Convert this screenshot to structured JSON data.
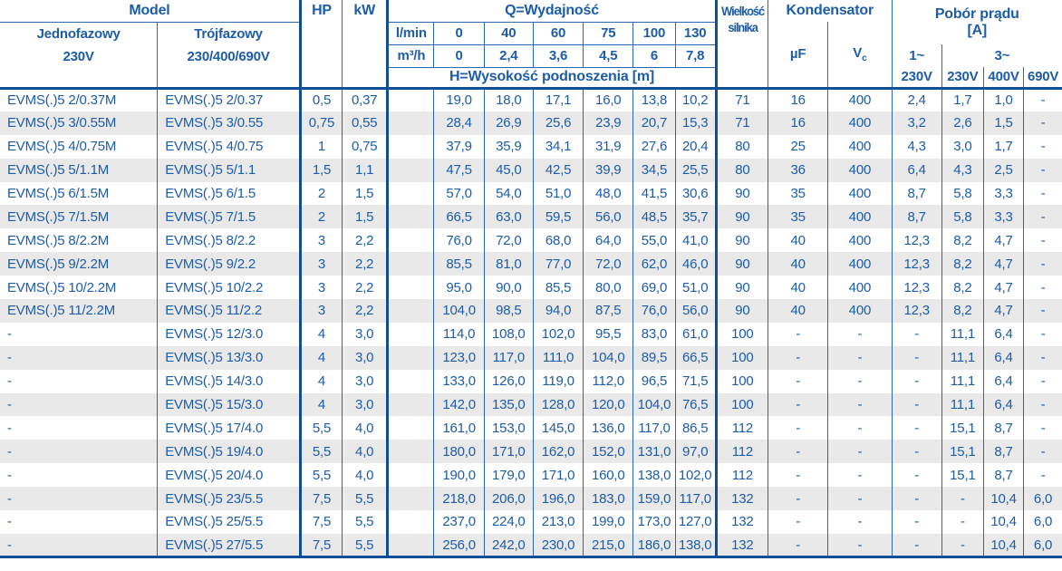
{
  "colors": {
    "text_blue": "#1d5ca8",
    "line_blue": "#2a67ae",
    "border_navy": "#0d4e95",
    "stripe_gray": "#e9e9ea"
  },
  "table": {
    "header": {
      "model_title": "Model",
      "single_phase_name": "Jednofazowy",
      "single_phase_voltage": "230V",
      "three_phase_name": "Trójfazowy",
      "three_phase_voltage": "230/400/690V",
      "hp_label": "HP",
      "kw_label": "kW",
      "flow_title": "Q=Wydajność",
      "flow_lmin_label": "l/min",
      "flow_lmin_values": [
        "0",
        "40",
        "60",
        "75",
        "100",
        "130"
      ],
      "flow_m3h_label": "m³/h",
      "flow_m3h_values": [
        "0",
        "2,4",
        "3,6",
        "4,5",
        "6",
        "7,8"
      ],
      "head_title": "H=Wysokość podnoszenia [m]",
      "motor_size_line1": "Wielkość",
      "motor_size_line2": "silnika",
      "capacitor_title": "Kondensator",
      "capacitor_uf_label": "µF",
      "capacitor_vc_label": "V",
      "capacitor_vc_sub": "c",
      "current_title_line1": "Pobór prądu",
      "current_title_line2": "[A]",
      "current_single_label": "1~",
      "current_three_label": "3~",
      "current_voltage_labels": [
        "230V",
        "230V",
        "400V",
        "690V"
      ]
    },
    "rows": [
      {
        "single": "EVMS(.)5 2/0.37M",
        "three": "EVMS(.)5 2/0.37",
        "hp": "0,5",
        "kw": "0,37",
        "heads": [
          "19,0",
          "18,0",
          "17,1",
          "16,0",
          "13,8",
          "10,2"
        ],
        "motor_size": "71",
        "uf": "16",
        "vc": "400",
        "currents": [
          "2,4",
          "1,7",
          "1,0",
          "-"
        ]
      },
      {
        "single": "EVMS(.)5 3/0.55M",
        "three": "EVMS(.)5 3/0.55",
        "hp": "0,75",
        "kw": "0,55",
        "heads": [
          "28,4",
          "26,9",
          "25,6",
          "23,9",
          "20,7",
          "15,3"
        ],
        "motor_size": "71",
        "uf": "16",
        "vc": "400",
        "currents": [
          "3,2",
          "2,6",
          "1,5",
          "-"
        ]
      },
      {
        "single": "EVMS(.)5 4/0.75M",
        "three": "EVMS(.)5 4/0.75",
        "hp": "1",
        "kw": "0,75",
        "heads": [
          "37,9",
          "35,9",
          "34,1",
          "31,9",
          "27,6",
          "20,4"
        ],
        "motor_size": "80",
        "uf": "25",
        "vc": "400",
        "currents": [
          "4,3",
          "3,0",
          "1,7",
          "-"
        ]
      },
      {
        "single": "EVMS(.)5 5/1.1M",
        "three": "EVMS(.)5 5/1.1",
        "hp": "1,5",
        "kw": "1,1",
        "heads": [
          "47,5",
          "45,0",
          "42,5",
          "39,9",
          "34,5",
          "25,5"
        ],
        "motor_size": "80",
        "uf": "36",
        "vc": "400",
        "currents": [
          "6,4",
          "4,3",
          "2,5",
          "-"
        ]
      },
      {
        "single": "EVMS(.)5 6/1.5M",
        "three": "EVMS(.)5 6/1.5",
        "hp": "2",
        "kw": "1,5",
        "heads": [
          "57,0",
          "54,0",
          "51,0",
          "48,0",
          "41,5",
          "30,6"
        ],
        "motor_size": "90",
        "uf": "35",
        "vc": "400",
        "currents": [
          "8,7",
          "5,8",
          "3,3",
          "-"
        ]
      },
      {
        "single": "EVMS(.)5 7/1.5M",
        "three": "EVMS(.)5 7/1.5",
        "hp": "2",
        "kw": "1,5",
        "heads": [
          "66,5",
          "63,0",
          "59,5",
          "56,0",
          "48,5",
          "35,7"
        ],
        "motor_size": "90",
        "uf": "35",
        "vc": "400",
        "currents": [
          "8,7",
          "5,8",
          "3,3",
          "-"
        ]
      },
      {
        "single": "EVMS(.)5 8/2.2M",
        "three": "EVMS(.)5 8/2.2",
        "hp": "3",
        "kw": "2,2",
        "heads": [
          "76,0",
          "72,0",
          "68,0",
          "64,0",
          "55,0",
          "41,0"
        ],
        "motor_size": "90",
        "uf": "40",
        "vc": "400",
        "currents": [
          "12,3",
          "8,2",
          "4,7",
          "-"
        ]
      },
      {
        "single": "EVMS(.)5 9/2.2M",
        "three": "EVMS(.)5 9/2.2",
        "hp": "3",
        "kw": "2,2",
        "heads": [
          "85,5",
          "81,0",
          "77,0",
          "72,0",
          "62,0",
          "46,0"
        ],
        "motor_size": "90",
        "uf": "40",
        "vc": "400",
        "currents": [
          "12,3",
          "8,2",
          "4,7",
          "-"
        ]
      },
      {
        "single": "EVMS(.)5 10/2.2M",
        "three": "EVMS(.)5 10/2.2",
        "hp": "3",
        "kw": "2,2",
        "heads": [
          "95,0",
          "90,0",
          "85,5",
          "80,0",
          "69,0",
          "51,0"
        ],
        "motor_size": "90",
        "uf": "40",
        "vc": "400",
        "currents": [
          "12,3",
          "8,2",
          "4,7",
          "-"
        ]
      },
      {
        "single": "EVMS(.)5 11/2.2M",
        "three": "EVMS(.)5 11/2.2",
        "hp": "3",
        "kw": "2,2",
        "heads": [
          "104,0",
          "98,5",
          "94,0",
          "87,5",
          "76,0",
          "56,0"
        ],
        "motor_size": "90",
        "uf": "40",
        "vc": "400",
        "currents": [
          "12,3",
          "8,2",
          "4,7",
          "-"
        ]
      },
      {
        "single": "-",
        "three": "EVMS(.)5 12/3.0",
        "hp": "4",
        "kw": "3,0",
        "heads": [
          "114,0",
          "108,0",
          "102,0",
          "95,5",
          "83,0",
          "61,0"
        ],
        "motor_size": "100",
        "uf": "-",
        "vc": "-",
        "currents": [
          "-",
          "11,1",
          "6,4",
          "-"
        ]
      },
      {
        "single": "-",
        "three": "EVMS(.)5 13/3.0",
        "hp": "4",
        "kw": "3,0",
        "heads": [
          "123,0",
          "117,0",
          "111,0",
          "104,0",
          "89,5",
          "66,5"
        ],
        "motor_size": "100",
        "uf": "-",
        "vc": "-",
        "currents": [
          "-",
          "11,1",
          "6,4",
          "-"
        ]
      },
      {
        "single": "-",
        "three": "EVMS(.)5 14/3.0",
        "hp": "4",
        "kw": "3,0",
        "heads": [
          "133,0",
          "126,0",
          "119,0",
          "112,0",
          "96,5",
          "71,5"
        ],
        "motor_size": "100",
        "uf": "-",
        "vc": "-",
        "currents": [
          "-",
          "11,1",
          "6,4",
          "-"
        ]
      },
      {
        "single": "-",
        "three": "EVMS(.)5 15/3.0",
        "hp": "4",
        "kw": "3,0",
        "heads": [
          "142,0",
          "135,0",
          "128,0",
          "120,0",
          "104,0",
          "76,5"
        ],
        "motor_size": "100",
        "uf": "-",
        "vc": "-",
        "currents": [
          "-",
          "11,1",
          "6,4",
          "-"
        ]
      },
      {
        "single": "-",
        "three": "EVMS(.)5 17/4.0",
        "hp": "5,5",
        "kw": "4,0",
        "heads": [
          "161,0",
          "153,0",
          "145,0",
          "136,0",
          "117,0",
          "86,5"
        ],
        "motor_size": "112",
        "uf": "-",
        "vc": "-",
        "currents": [
          "-",
          "15,1",
          "8,7",
          "-"
        ]
      },
      {
        "single": "-",
        "three": "EVMS(.)5 19/4.0",
        "hp": "5,5",
        "kw": "4,0",
        "heads": [
          "180,0",
          "171,0",
          "162,0",
          "152,0",
          "131,0",
          "97,0"
        ],
        "motor_size": "112",
        "uf": "-",
        "vc": "-",
        "currents": [
          "-",
          "15,1",
          "8,7",
          "-"
        ]
      },
      {
        "single": "-",
        "three": "EVMS(.)5 20/4.0",
        "hp": "5,5",
        "kw": "4,0",
        "heads": [
          "190,0",
          "179,0",
          "171,0",
          "160,0",
          "138,0",
          "102,0"
        ],
        "motor_size": "112",
        "uf": "-",
        "vc": "-",
        "currents": [
          "-",
          "15,1",
          "8,7",
          "-"
        ]
      },
      {
        "single": "-",
        "three": "EVMS(.)5 23/5.5",
        "hp": "7,5",
        "kw": "5,5",
        "heads": [
          "218,0",
          "206,0",
          "196,0",
          "183,0",
          "159,0",
          "117,0"
        ],
        "motor_size": "132",
        "uf": "-",
        "vc": "-",
        "currents": [
          "-",
          "-",
          "10,4",
          "6,0"
        ]
      },
      {
        "single": "-",
        "three": "EVMS(.)5 25/5.5",
        "hp": "7,5",
        "kw": "5,5",
        "heads": [
          "237,0",
          "224,0",
          "213,0",
          "199,0",
          "173,0",
          "127,0"
        ],
        "motor_size": "132",
        "uf": "-",
        "vc": "-",
        "currents": [
          "-",
          "-",
          "10,4",
          "6,0"
        ]
      },
      {
        "single": "-",
        "three": "EVMS(.)5 27/5.5",
        "hp": "7,5",
        "kw": "5,5",
        "heads": [
          "256,0",
          "242,0",
          "230,0",
          "215,0",
          "186,0",
          "138,0"
        ],
        "motor_size": "132",
        "uf": "-",
        "vc": "-",
        "currents": [
          "-",
          "-",
          "10,4",
          "6,0"
        ]
      }
    ]
  }
}
